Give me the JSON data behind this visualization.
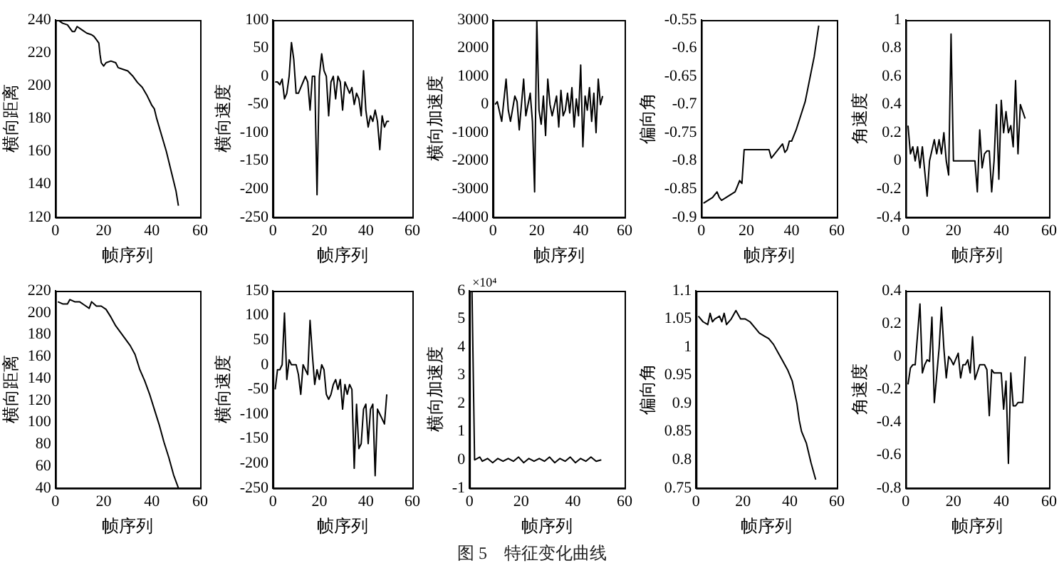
{
  "chart_data": [
    {
      "type": "line",
      "xlabel": "帧序列",
      "ylabel": "横向距离",
      "xlim": [
        0,
        60
      ],
      "xticks": [
        0,
        20,
        40,
        60
      ],
      "ylim": [
        120,
        240
      ],
      "yticks": [
        120,
        140,
        160,
        180,
        200,
        220,
        240
      ],
      "color": "#000000",
      "x": [
        1,
        3,
        5,
        7,
        8,
        9,
        11,
        13,
        15,
        16,
        17,
        18,
        18.5,
        19,
        20,
        21,
        23,
        25,
        26,
        28,
        30,
        32,
        34,
        36,
        38,
        39,
        40,
        41,
        42,
        44,
        46,
        48,
        50,
        51
      ],
      "values": [
        240,
        238,
        237,
        233,
        233,
        236,
        234,
        232,
        231,
        230,
        228,
        226,
        219,
        214,
        212,
        214,
        215,
        214,
        211,
        210,
        209,
        206,
        202,
        199,
        194,
        191,
        188,
        186,
        180,
        170,
        160,
        148,
        136,
        127
      ]
    },
    {
      "type": "line",
      "xlabel": "帧序列",
      "ylabel": "横向速度",
      "xlim": [
        0,
        60
      ],
      "xticks": [
        0,
        20,
        40,
        60
      ],
      "ylim": [
        -250,
        100
      ],
      "yticks": [
        -250,
        -200,
        -150,
        -100,
        -50,
        0,
        50,
        100
      ],
      "color": "#000000",
      "x": [
        1,
        2,
        3,
        4,
        5,
        6,
        7,
        8,
        9,
        10,
        11,
        12,
        13,
        14,
        15,
        16,
        17,
        18,
        19,
        20,
        21,
        22,
        23,
        24,
        25,
        26,
        27,
        28,
        29,
        30,
        31,
        32,
        33,
        34,
        35,
        36,
        37,
        38,
        39,
        40,
        41,
        42,
        43,
        44,
        45,
        46,
        47,
        48,
        49,
        50
      ],
      "values": [
        -10,
        -10,
        -15,
        -5,
        -40,
        -30,
        0,
        60,
        30,
        -30,
        -30,
        -20,
        -10,
        0,
        -10,
        -60,
        0,
        0,
        -210,
        0,
        40,
        10,
        0,
        -70,
        -10,
        0,
        -40,
        0,
        -10,
        -60,
        -10,
        -20,
        -30,
        -20,
        -50,
        -30,
        -40,
        -70,
        10,
        -60,
        -90,
        -70,
        -80,
        -60,
        -80,
        -130,
        -70,
        -90,
        -80,
        -80
      ]
    },
    {
      "type": "line",
      "xlabel": "帧序列",
      "ylabel": "横向加速度",
      "xlim": [
        0,
        60
      ],
      "xticks": [
        0,
        20,
        40,
        60
      ],
      "ylim": [
        -4000,
        3000
      ],
      "yticks": [
        -4000,
        -3000,
        -2000,
        -1000,
        0,
        1000,
        2000,
        3000
      ],
      "color": "#000000",
      "x": [
        1,
        2,
        4,
        6,
        7,
        8,
        10,
        11,
        12,
        14,
        15,
        17,
        18,
        19,
        20,
        21,
        22,
        23,
        24,
        25,
        26,
        27,
        29,
        30,
        31,
        32,
        33,
        34,
        35,
        36,
        37,
        38,
        39,
        40,
        41,
        42,
        43,
        44,
        45,
        46,
        47,
        48,
        49,
        50
      ],
      "values": [
        0,
        100,
        -600,
        900,
        -200,
        -600,
        300,
        100,
        -900,
        900,
        -400,
        400,
        -600,
        -3100,
        3000,
        -200,
        -700,
        300,
        -1100,
        900,
        0,
        -400,
        300,
        -800,
        500,
        -400,
        -200,
        400,
        -300,
        600,
        -800,
        200,
        -400,
        1400,
        -1500,
        300,
        -200,
        600,
        -600,
        400,
        -1000,
        900,
        0,
        300
      ]
    },
    {
      "type": "line",
      "xlabel": "帧序列",
      "ylabel": "偏向角",
      "xlim": [
        0,
        60
      ],
      "xticks": [
        0,
        20,
        40,
        60
      ],
      "ylim": [
        -0.9,
        -0.55
      ],
      "yticks": [
        -0.9,
        -0.85,
        -0.8,
        -0.75,
        -0.7,
        -0.65,
        -0.6,
        -0.55
      ],
      "color": "#000000",
      "x": [
        1,
        3,
        5,
        7,
        8,
        9,
        11,
        13,
        15,
        16,
        17,
        18,
        19,
        30,
        31,
        33,
        35,
        36,
        37,
        38,
        39,
        40,
        42,
        44,
        46,
        47,
        48,
        50,
        52
      ],
      "values": [
        -0.875,
        -0.87,
        -0.865,
        -0.855,
        -0.865,
        -0.87,
        -0.865,
        -0.86,
        -0.855,
        -0.845,
        -0.835,
        -0.84,
        -0.78,
        -0.78,
        -0.795,
        -0.785,
        -0.775,
        -0.77,
        -0.785,
        -0.78,
        -0.765,
        -0.765,
        -0.745,
        -0.72,
        -0.695,
        -0.675,
        -0.655,
        -0.615,
        -0.56
      ]
    },
    {
      "type": "line",
      "xlabel": "帧序列",
      "ylabel": "角速度",
      "xlim": [
        0,
        60
      ],
      "xticks": [
        0,
        20,
        40,
        60
      ],
      "ylim": [
        -0.4,
        1
      ],
      "yticks": [
        -0.4,
        -0.2,
        0,
        0.2,
        0.4,
        0.6,
        0.8,
        1
      ],
      "color": "#000000",
      "x": [
        1,
        2,
        3,
        4,
        5,
        6,
        7,
        9,
        10,
        12,
        13,
        14,
        15,
        16,
        17,
        18,
        19,
        20,
        29,
        30,
        31,
        32,
        33,
        34,
        35,
        36,
        37,
        38,
        39,
        40,
        41,
        42,
        43,
        44,
        45,
        46,
        47,
        48,
        49,
        50
      ],
      "values": [
        0.25,
        0.05,
        0.1,
        0,
        0.1,
        -0.05,
        0.1,
        -0.25,
        0,
        0.15,
        0.05,
        0.15,
        0.05,
        0.2,
        0,
        -0.1,
        0.9,
        0,
        0,
        -0.22,
        0.22,
        -0.05,
        0.05,
        0.07,
        0.07,
        -0.22,
        0,
        0.4,
        -0.13,
        0.43,
        0.2,
        0.35,
        0.2,
        0.25,
        0.1,
        0.57,
        0.05,
        0.4,
        0.35,
        0.3
      ]
    },
    {
      "type": "line",
      "xlabel": "帧序列",
      "ylabel": "横向距离",
      "xlim": [
        0,
        60
      ],
      "xticks": [
        0,
        20,
        40,
        60
      ],
      "ylim": [
        40,
        220
      ],
      "yticks": [
        40,
        60,
        80,
        100,
        120,
        140,
        160,
        180,
        200,
        220
      ],
      "color": "#000000",
      "x": [
        1,
        3,
        5,
        6,
        8,
        10,
        12,
        14,
        15,
        16,
        17,
        19,
        21,
        23,
        25,
        27,
        29,
        31,
        33,
        35,
        37,
        39,
        41,
        43,
        45,
        47,
        49,
        51
      ],
      "values": [
        210,
        208,
        208,
        212,
        210,
        210,
        207,
        204,
        210,
        208,
        206,
        206,
        203,
        196,
        188,
        182,
        176,
        170,
        162,
        148,
        138,
        126,
        112,
        98,
        82,
        68,
        52,
        40
      ]
    },
    {
      "type": "line",
      "xlabel": "帧序列",
      "ylabel": "横向速度",
      "xlim": [
        0,
        60
      ],
      "xticks": [
        0,
        20,
        40,
        60
      ],
      "ylim": [
        -250,
        150
      ],
      "yticks": [
        -250,
        -200,
        -150,
        -100,
        -50,
        0,
        50,
        100,
        150
      ],
      "color": "#000000",
      "x": [
        1,
        2,
        3,
        4,
        5,
        6,
        7,
        8,
        9,
        10,
        11,
        12,
        13,
        14,
        15,
        16,
        17,
        18,
        19,
        20,
        21,
        22,
        23,
        24,
        25,
        26,
        27,
        28,
        29,
        30,
        31,
        32,
        33,
        34,
        35,
        36,
        37,
        38,
        39,
        40,
        41,
        42,
        43,
        44,
        45,
        46,
        47,
        48,
        49
      ],
      "values": [
        -50,
        -10,
        -10,
        0,
        105,
        -30,
        10,
        0,
        0,
        0,
        -20,
        -60,
        0,
        -10,
        -20,
        90,
        20,
        -40,
        -10,
        -30,
        0,
        -10,
        -60,
        -70,
        -60,
        -40,
        -30,
        -50,
        -30,
        -90,
        -40,
        -60,
        -40,
        -50,
        -210,
        -80,
        -170,
        -160,
        -90,
        -80,
        -160,
        -90,
        -80,
        -225,
        -90,
        -100,
        -110,
        -120,
        -60
      ]
    },
    {
      "type": "line",
      "xlabel": "帧序列",
      "ylabel": "横向加速度",
      "xlim": [
        0,
        60
      ],
      "xticks": [
        0,
        20,
        40,
        60
      ],
      "ylim": [
        -1,
        6
      ],
      "yticks": [
        -1,
        0,
        1,
        2,
        3,
        4,
        5,
        6
      ],
      "color": "#000000",
      "annotations": [
        "×10⁴"
      ],
      "x": [
        1,
        2,
        4,
        5,
        7,
        9,
        11,
        13,
        15,
        17,
        19,
        21,
        23,
        25,
        27,
        29,
        31,
        33,
        35,
        37,
        39,
        41,
        43,
        45,
        47,
        49,
        51
      ],
      "values": [
        6,
        0,
        0.1,
        -0.05,
        0.05,
        -0.1,
        0.05,
        -0.05,
        0.05,
        -0.05,
        0.1,
        -0.1,
        0.05,
        -0.05,
        0.05,
        -0.05,
        0.1,
        -0.1,
        0.05,
        -0.05,
        0.1,
        -0.1,
        0.05,
        -0.05,
        0.1,
        -0.05,
        0
      ]
    },
    {
      "type": "line",
      "xlabel": "帧序列",
      "ylabel": "偏向角",
      "xlim": [
        0,
        60
      ],
      "xticks": [
        0,
        20,
        40,
        60
      ],
      "ylim": [
        0.75,
        1.1
      ],
      "yticks": [
        0.75,
        0.8,
        0.85,
        0.9,
        0.95,
        1,
        1.05,
        1.1
      ],
      "color": "#000000",
      "x": [
        1,
        3,
        5,
        6,
        7,
        8,
        10,
        11,
        12,
        13,
        15,
        17,
        19,
        21,
        23,
        25,
        27,
        29,
        31,
        33,
        35,
        37,
        39,
        41,
        42,
        43,
        44,
        45,
        47,
        49,
        51
      ],
      "values": [
        1.055,
        1.045,
        1.04,
        1.06,
        1.045,
        1.05,
        1.055,
        1.045,
        1.06,
        1.04,
        1.05,
        1.065,
        1.05,
        1.05,
        1.045,
        1.035,
        1.025,
        1.02,
        1.015,
        1.005,
        0.99,
        0.975,
        0.96,
        0.94,
        0.92,
        0.9,
        0.87,
        0.85,
        0.83,
        0.795,
        0.765
      ]
    },
    {
      "type": "line",
      "xlabel": "帧序列",
      "ylabel": "角速度",
      "xlim": [
        0,
        60
      ],
      "xticks": [
        0,
        20,
        40,
        60
      ],
      "ylim": [
        -0.8,
        0.4
      ],
      "yticks": [
        -0.8,
        -0.6,
        -0.4,
        -0.2,
        0,
        0.2,
        0.4
      ],
      "color": "#000000",
      "x": [
        1,
        2,
        3,
        4,
        6,
        7,
        8,
        9,
        10,
        11,
        12,
        14,
        15,
        16,
        17,
        18,
        19,
        20,
        22,
        23,
        24,
        25,
        26,
        27,
        28,
        29,
        31,
        32,
        33,
        34,
        35,
        36,
        37,
        38,
        40,
        41,
        42,
        43,
        44,
        45,
        46,
        47,
        49,
        50
      ],
      "values": [
        -0.17,
        -0.07,
        -0.05,
        -0.05,
        0.32,
        -0.1,
        -0.05,
        -0.02,
        -0.03,
        0.24,
        -0.28,
        0.05,
        0.3,
        0.05,
        -0.13,
        0,
        -0.02,
        -0.05,
        0.02,
        -0.13,
        -0.05,
        -0.05,
        -0.02,
        -0.1,
        0.12,
        -0.14,
        -0.05,
        -0.05,
        -0.05,
        -0.08,
        -0.36,
        -0.08,
        -0.1,
        -0.1,
        -0.1,
        -0.32,
        -0.15,
        -0.65,
        -0.1,
        -0.3,
        -0.3,
        -0.28,
        -0.28,
        0
      ]
    },
    {
      "type": "other",
      "annotations": [
        "图 5　特征变化曲线"
      ]
    }
  ]
}
